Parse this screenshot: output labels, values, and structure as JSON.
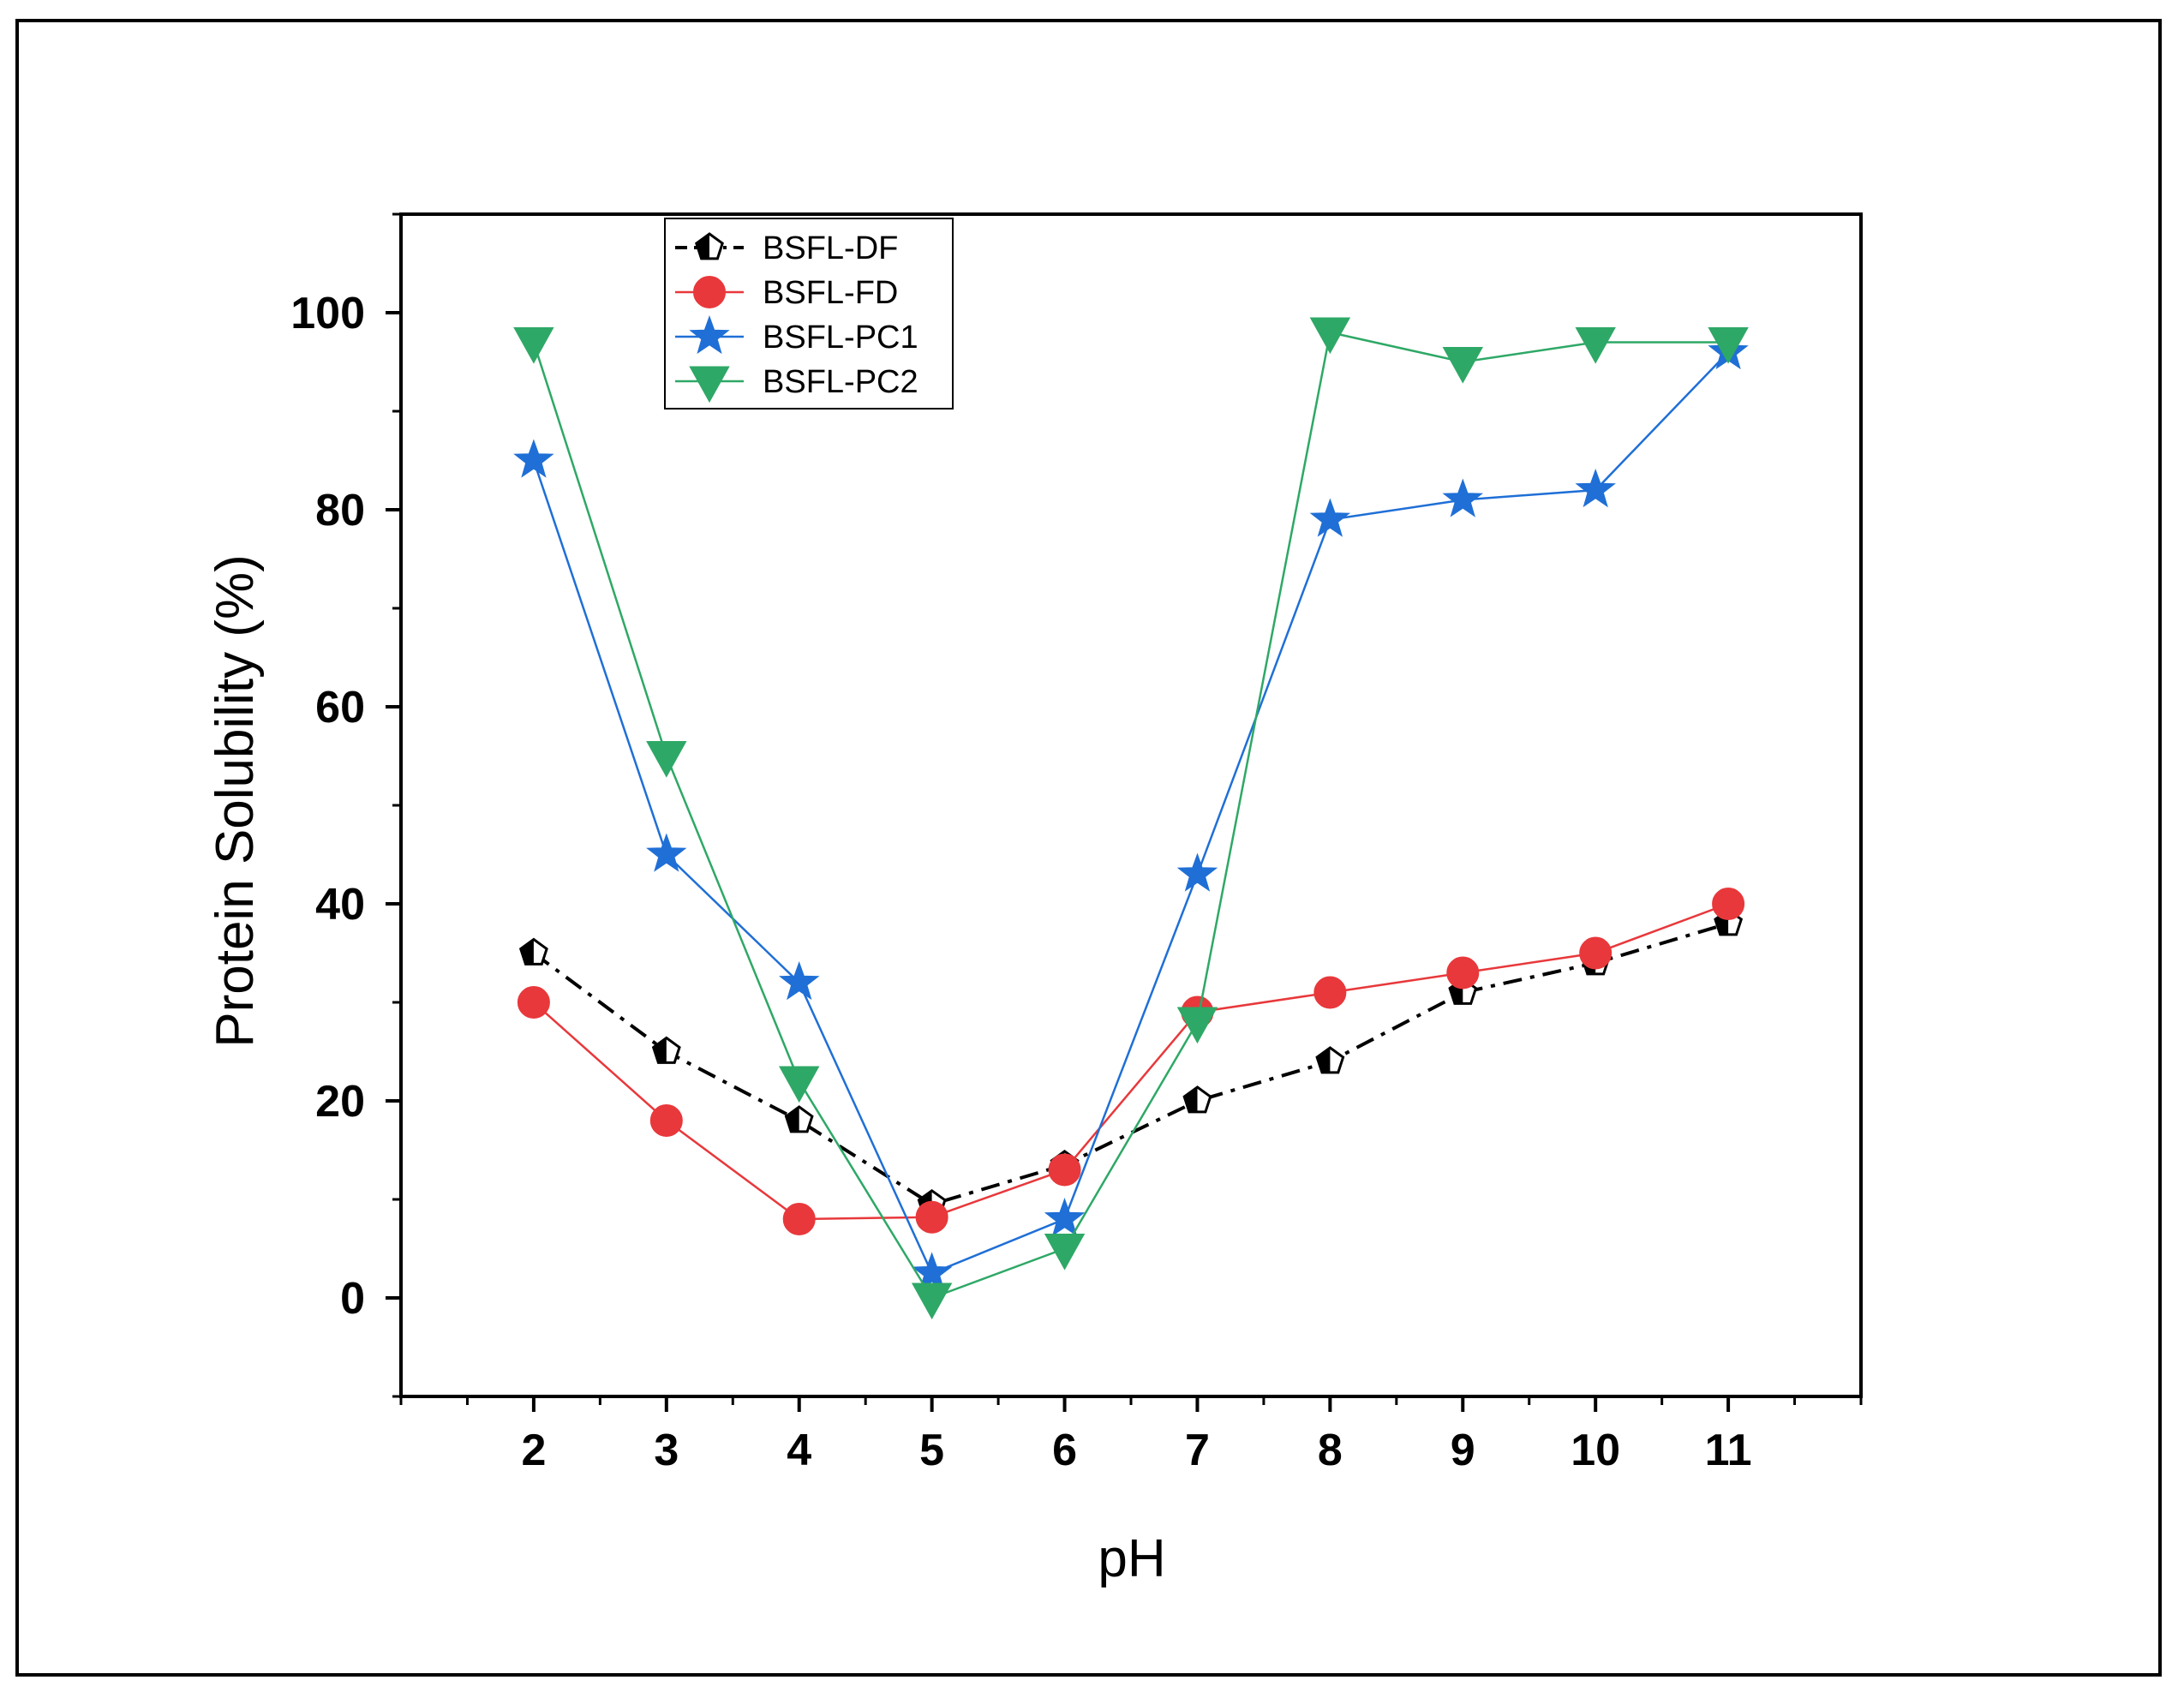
{
  "chart_data": {
    "type": "line",
    "title": "",
    "xlabel": "pH",
    "ylabel": "Protein Solubility (%)",
    "xlim": [
      1,
      12
    ],
    "ylim": [
      -10,
      110
    ],
    "xticks": [
      2,
      3,
      4,
      5,
      6,
      7,
      8,
      9,
      10,
      11
    ],
    "yticks": [
      0,
      20,
      40,
      60,
      80,
      100
    ],
    "legend_position": "top-left",
    "x": [
      2,
      3,
      4,
      5,
      6,
      7,
      8,
      9,
      10,
      11
    ],
    "series": [
      {
        "name": "BSFL-DF",
        "color": "#000000",
        "marker": "pentagon-half-filled",
        "line": "dash-dot",
        "values": [
          35,
          25,
          18,
          9.5,
          13.5,
          20,
          24,
          31,
          34,
          38
        ]
      },
      {
        "name": "BSFL-FD",
        "color": "#e8383b",
        "marker": "circle",
        "line": "solid",
        "values": [
          30,
          18,
          8,
          8.2,
          13,
          29,
          31,
          33,
          35,
          40
        ]
      },
      {
        "name": "BSFL-PC1",
        "color": "#1f6fd6",
        "marker": "star",
        "line": "solid",
        "values": [
          85,
          45,
          32,
          2.5,
          8,
          43,
          79,
          81,
          82,
          96
        ]
      },
      {
        "name": "BSFL-PC2",
        "color": "#2ea866",
        "marker": "triangle-down",
        "line": "solid",
        "values": [
          97,
          55,
          22,
          0,
          5,
          28,
          98,
          95,
          97,
          97
        ]
      }
    ]
  }
}
